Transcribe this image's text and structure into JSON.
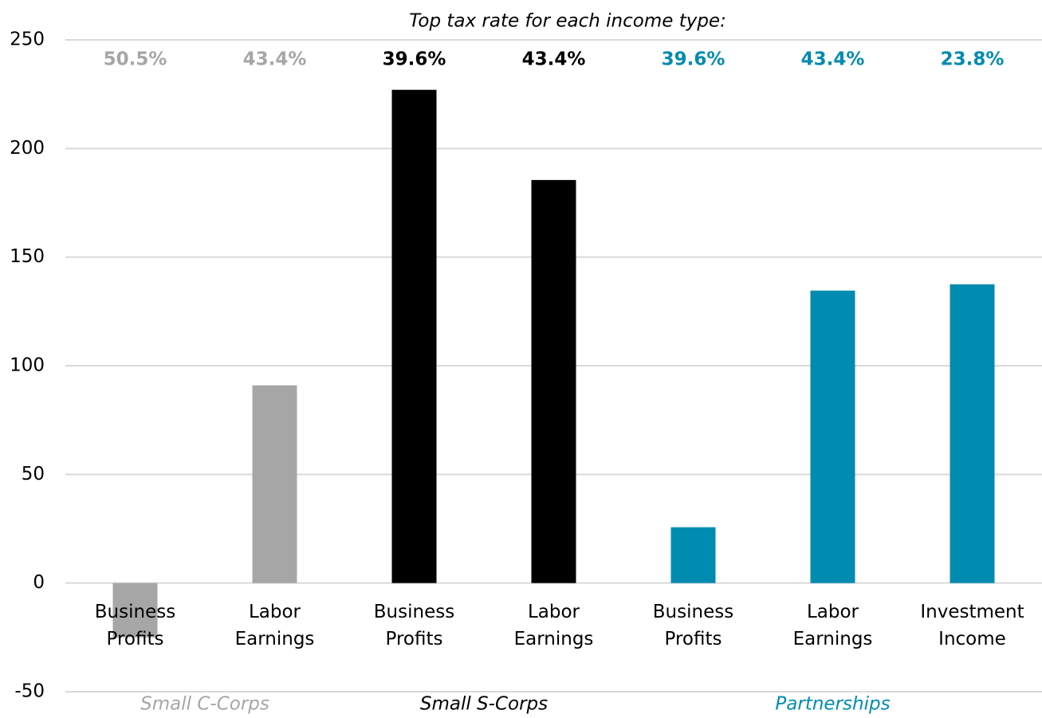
{
  "chart_data": {
    "type": "bar",
    "title": "Top tax rate for each income type:",
    "categories": [
      "Business Profits",
      "Labor Earnings",
      "Business Profits",
      "Labor Earnings",
      "Business Profits",
      "Labor Earnings",
      "Investment Income"
    ],
    "values": [
      -25,
      91,
      227,
      185.5,
      25.7,
      134.6,
      137.5
    ],
    "colors": [
      "#a6a6a6",
      "#a6a6a6",
      "#000000",
      "#000000",
      "#008bb0",
      "#008bb0",
      "#008bb0"
    ],
    "top_rates": [
      50.5,
      43.4,
      39.6,
      43.4,
      39.6,
      43.4,
      23.8
    ],
    "top_rate_labels": [
      "50.5%",
      "43.4%",
      "39.6%",
      "43.4%",
      "39.6%",
      "43.4%",
      "23.8%"
    ],
    "groups": [
      {
        "name": "Small C-Corps",
        "color": "#a6a6a6"
      },
      {
        "name": "Small S-Corps",
        "color": "#000000"
      },
      {
        "name": "Partnerships",
        "color": "#008bb0"
      }
    ],
    "ylim": [
      -50,
      250
    ],
    "yticks": [
      -50,
      0,
      50,
      100,
      150,
      200,
      250
    ],
    "grid": true
  }
}
